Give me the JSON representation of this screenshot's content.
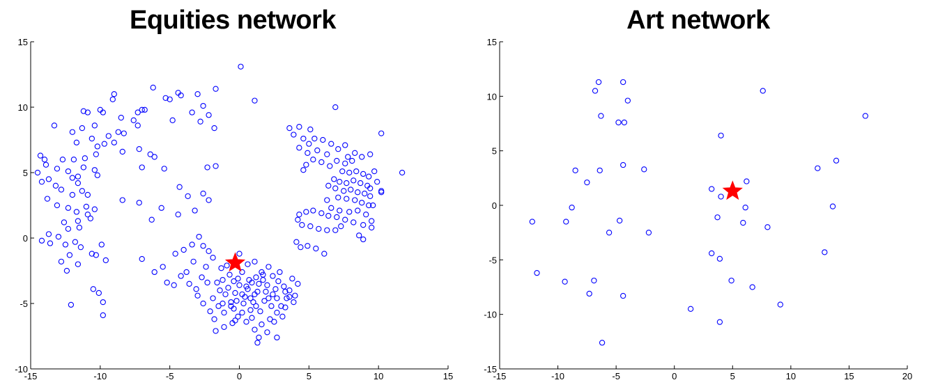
{
  "chart_data": [
    {
      "type": "scatter",
      "title": "Equities network",
      "xlim": [
        -15,
        15
      ],
      "ylim": [
        -10,
        15
      ],
      "xticks": [
        "-15",
        "-10",
        "-5",
        "0",
        "5",
        "10",
        "15"
      ],
      "yticks": [
        "-10",
        "-5",
        "0",
        "5",
        "10",
        "15"
      ],
      "grid": false,
      "marker_color": "#0000ff",
      "highlight_color": "#ff0000",
      "highlight": {
        "x": -0.3,
        "y": -1.9
      },
      "points": [
        [
          0.1,
          13.1
        ],
        [
          -6.2,
          11.5
        ],
        [
          -1.7,
          11.4
        ],
        [
          -3.0,
          11.0
        ],
        [
          -4.4,
          11.1
        ],
        [
          -4.2,
          10.9
        ],
        [
          -9.0,
          11.0
        ],
        [
          -9.1,
          10.6
        ],
        [
          1.1,
          10.5
        ],
        [
          -7.0,
          9.8
        ],
        [
          -7.3,
          9.6
        ],
        [
          -6.8,
          9.8
        ],
        [
          -5.3,
          10.7
        ],
        [
          -5.0,
          10.6
        ],
        [
          -2.6,
          10.1
        ],
        [
          -3.4,
          9.6
        ],
        [
          -10.9,
          9.6
        ],
        [
          -11.2,
          9.7
        ],
        [
          -10.0,
          9.8
        ],
        [
          -8.5,
          9.2
        ],
        [
          -9.8,
          9.6
        ],
        [
          -7.6,
          9.0
        ],
        [
          -4.8,
          9.0
        ],
        [
          -2.2,
          9.4
        ],
        [
          -2.8,
          8.9
        ],
        [
          -1.8,
          8.4
        ],
        [
          -7.3,
          8.6
        ],
        [
          -8.3,
          8.0
        ],
        [
          -8.7,
          8.1
        ],
        [
          -10.4,
          8.6
        ],
        [
          -11.3,
          8.4
        ],
        [
          -12.0,
          8.1
        ],
        [
          -13.3,
          8.6
        ],
        [
          -11.7,
          7.3
        ],
        [
          -10.6,
          7.6
        ],
        [
          -9.4,
          7.8
        ],
        [
          -9.7,
          7.2
        ],
        [
          -10.2,
          7.0
        ],
        [
          -9.0,
          7.3
        ],
        [
          -8.4,
          6.6
        ],
        [
          -7.2,
          6.8
        ],
        [
          -6.4,
          6.4
        ],
        [
          -6.1,
          6.2
        ],
        [
          -7.0,
          5.4
        ],
        [
          -10.3,
          6.4
        ],
        [
          -11.1,
          6.1
        ],
        [
          -11.9,
          6.0
        ],
        [
          -12.7,
          6.0
        ],
        [
          -14.0,
          6.0
        ],
        [
          -13.9,
          5.6
        ],
        [
          -14.3,
          6.3
        ],
        [
          -13.1,
          5.3
        ],
        [
          -12.3,
          5.1
        ],
        [
          -11.2,
          5.4
        ],
        [
          -10.4,
          5.2
        ],
        [
          -10.2,
          4.8
        ],
        [
          -11.6,
          4.7
        ],
        [
          -12.0,
          4.6
        ],
        [
          -13.7,
          4.5
        ],
        [
          -14.2,
          4.3
        ],
        [
          -14.5,
          5.0
        ],
        [
          -13.2,
          4.0
        ],
        [
          -11.6,
          4.2
        ],
        [
          -11.3,
          3.6
        ],
        [
          -10.9,
          3.3
        ],
        [
          -12.0,
          3.3
        ],
        [
          -12.8,
          3.7
        ],
        [
          -13.8,
          3.0
        ],
        [
          -13.1,
          2.5
        ],
        [
          -12.3,
          2.3
        ],
        [
          -11.0,
          2.4
        ],
        [
          -10.4,
          2.2
        ],
        [
          -10.9,
          1.8
        ],
        [
          -11.7,
          2.0
        ],
        [
          -12.6,
          1.2
        ],
        [
          -11.6,
          1.3
        ],
        [
          -10.7,
          1.5
        ],
        [
          -11.5,
          0.8
        ],
        [
          -12.3,
          0.7
        ],
        [
          -13.0,
          0.1
        ],
        [
          -13.7,
          0.3
        ],
        [
          -14.2,
          -0.2
        ],
        [
          -13.6,
          -0.4
        ],
        [
          -12.5,
          -0.5
        ],
        [
          -11.8,
          -0.3
        ],
        [
          -11.4,
          -0.7
        ],
        [
          -12.2,
          -1.3
        ],
        [
          -12.8,
          -1.8
        ],
        [
          -11.6,
          -2.0
        ],
        [
          -10.6,
          -1.2
        ],
        [
          -9.9,
          -0.5
        ],
        [
          -10.3,
          -1.3
        ],
        [
          -9.6,
          -1.7
        ],
        [
          -12.4,
          -2.5
        ],
        [
          -10.5,
          -3.9
        ],
        [
          -10.1,
          -4.2
        ],
        [
          -9.8,
          -4.9
        ],
        [
          -12.1,
          -5.1
        ],
        [
          -9.8,
          -5.9
        ],
        [
          -8.4,
          2.9
        ],
        [
          -7.2,
          2.7
        ],
        [
          -6.3,
          1.4
        ],
        [
          -5.6,
          2.3
        ],
        [
          -5.4,
          5.3
        ],
        [
          -4.3,
          3.9
        ],
        [
          -3.7,
          3.2
        ],
        [
          -2.6,
          3.4
        ],
        [
          -2.2,
          2.9
        ],
        [
          -3.2,
          2.1
        ],
        [
          -4.4,
          1.8
        ],
        [
          -2.3,
          5.4
        ],
        [
          -1.7,
          5.5
        ],
        [
          -7.0,
          -1.6
        ],
        [
          -6.1,
          -2.6
        ],
        [
          -5.5,
          -2.2
        ],
        [
          -5.2,
          -3.4
        ],
        [
          -4.6,
          -1.2
        ],
        [
          -4.0,
          -0.9
        ],
        [
          -3.4,
          -0.5
        ],
        [
          -2.9,
          0.1
        ],
        [
          -2.6,
          -0.6
        ],
        [
          -2.2,
          -1.0
        ],
        [
          -3.3,
          -1.8
        ],
        [
          -3.8,
          -2.6
        ],
        [
          -2.7,
          -3.0
        ],
        [
          -2.3,
          -3.4
        ],
        [
          -3.1,
          -3.9
        ],
        [
          -1.9,
          -4.6
        ],
        [
          -1.5,
          -5.2
        ],
        [
          -2.1,
          -5.6
        ],
        [
          -1.8,
          -6.2
        ],
        [
          -1.1,
          -5.7
        ],
        [
          -0.6,
          -5.2
        ],
        [
          -0.2,
          -4.8
        ],
        [
          0.2,
          -4.3
        ],
        [
          0.5,
          -3.7
        ],
        [
          0.9,
          -3.4
        ],
        [
          1.2,
          -3.0
        ],
        [
          1.6,
          -2.6
        ],
        [
          2.1,
          -2.2
        ],
        [
          2.4,
          -2.9
        ],
        [
          2.8,
          -3.3
        ],
        [
          3.2,
          -3.7
        ],
        [
          3.6,
          -4.0
        ],
        [
          4.0,
          -4.4
        ],
        [
          3.9,
          -4.9
        ],
        [
          3.3,
          -5.3
        ],
        [
          2.7,
          -5.7
        ],
        [
          2.2,
          -6.2
        ],
        [
          1.6,
          -6.6
        ],
        [
          1.1,
          -7.0
        ],
        [
          0.5,
          -6.4
        ],
        [
          -0.1,
          -6.0
        ],
        [
          -0.5,
          -6.5
        ],
        [
          -1.1,
          -6.8
        ],
        [
          -1.7,
          -7.1
        ],
        [
          1.4,
          -7.6
        ],
        [
          1.3,
          -8.0
        ],
        [
          2.0,
          -7.2
        ],
        [
          2.7,
          -7.6
        ],
        [
          0.0,
          -1.2
        ],
        [
          0.6,
          -2.0
        ],
        [
          1.1,
          -1.8
        ],
        [
          1.7,
          -2.8
        ],
        [
          2.4,
          -4.3
        ],
        [
          1.8,
          -4.8
        ],
        [
          1.2,
          -5.2
        ],
        [
          0.8,
          -4.6
        ],
        [
          0.3,
          -5.0
        ],
        [
          -0.3,
          -4.2
        ],
        [
          -0.8,
          -3.8
        ],
        [
          -1.2,
          -3.2
        ],
        [
          -0.7,
          -2.8
        ],
        [
          -0.1,
          -3.1
        ],
        [
          0.6,
          -3.9
        ],
        [
          1.3,
          -4.1
        ],
        [
          2.0,
          -3.6
        ],
        [
          2.7,
          -4.6
        ],
        [
          3.0,
          -5.2
        ],
        [
          3.6,
          -4.5
        ],
        [
          -1.3,
          -2.3
        ],
        [
          -1.9,
          -1.5
        ],
        [
          -2.4,
          -2.2
        ],
        [
          -1.0,
          -4.3
        ],
        [
          -0.4,
          -5.4
        ],
        [
          0.2,
          -5.7
        ],
        [
          0.8,
          -5.5
        ],
        [
          1.5,
          -5.6
        ],
        [
          2.3,
          -5.2
        ],
        [
          1.9,
          -4.1
        ],
        [
          2.6,
          -3.9
        ],
        [
          3.3,
          -4.1
        ],
        [
          1.0,
          -4.9
        ],
        [
          0.4,
          -4.5
        ],
        [
          -0.6,
          -4.9
        ],
        [
          -1.4,
          -4.0
        ],
        [
          -1.6,
          -3.4
        ],
        [
          -0.9,
          -2.1
        ],
        [
          0.2,
          -2.6
        ],
        [
          1.4,
          -3.5
        ],
        [
          -3.0,
          -4.4
        ],
        [
          -2.6,
          -5.0
        ],
        [
          -3.6,
          -3.5
        ],
        [
          -4.2,
          -2.9
        ],
        [
          -4.7,
          -3.6
        ],
        [
          2.9,
          -2.6
        ],
        [
          3.8,
          -3.1
        ],
        [
          4.2,
          -3.5
        ],
        [
          1.7,
          -3.2
        ],
        [
          0.0,
          -3.6
        ],
        [
          -0.4,
          -3.3
        ],
        [
          -1.2,
          -5.0
        ],
        [
          -0.3,
          -6.3
        ],
        [
          0.9,
          -6.1
        ],
        [
          2.5,
          -6.4
        ],
        [
          3.1,
          -6.0
        ],
        [
          3.4,
          -4.6
        ],
        [
          2.1,
          -4.6
        ],
        [
          1.1,
          -4.3
        ],
        [
          0.7,
          -3.2
        ],
        [
          6.9,
          10.0
        ],
        [
          3.6,
          8.4
        ],
        [
          4.3,
          8.5
        ],
        [
          5.1,
          8.3
        ],
        [
          3.9,
          7.9
        ],
        [
          4.6,
          7.6
        ],
        [
          5.4,
          7.6
        ],
        [
          6.0,
          7.5
        ],
        [
          4.3,
          6.9
        ],
        [
          4.9,
          6.5
        ],
        [
          5.6,
          6.7
        ],
        [
          6.3,
          6.4
        ],
        [
          5.3,
          6.0
        ],
        [
          4.8,
          5.6
        ],
        [
          4.6,
          5.2
        ],
        [
          5.9,
          5.8
        ],
        [
          6.5,
          5.5
        ],
        [
          7.0,
          5.9
        ],
        [
          7.6,
          5.7
        ],
        [
          8.1,
          5.9
        ],
        [
          8.8,
          6.2
        ],
        [
          9.4,
          6.4
        ],
        [
          7.4,
          5.1
        ],
        [
          7.9,
          5.0
        ],
        [
          8.4,
          5.1
        ],
        [
          8.9,
          4.9
        ],
        [
          9.3,
          4.7
        ],
        [
          6.8,
          4.5
        ],
        [
          7.2,
          4.3
        ],
        [
          7.7,
          4.2
        ],
        [
          8.2,
          4.4
        ],
        [
          8.7,
          4.2
        ],
        [
          9.2,
          4.0
        ],
        [
          6.4,
          4.0
        ],
        [
          6.9,
          3.8
        ],
        [
          7.5,
          3.6
        ],
        [
          8.0,
          3.7
        ],
        [
          8.5,
          3.5
        ],
        [
          9.0,
          3.4
        ],
        [
          9.4,
          3.2
        ],
        [
          7.1,
          3.1
        ],
        [
          7.7,
          3.0
        ],
        [
          8.3,
          2.9
        ],
        [
          8.8,
          2.7
        ],
        [
          9.3,
          2.5
        ],
        [
          6.3,
          2.9
        ],
        [
          6.6,
          2.3
        ],
        [
          7.2,
          2.1
        ],
        [
          7.9,
          2.0
        ],
        [
          8.5,
          2.1
        ],
        [
          9.1,
          1.8
        ],
        [
          9.5,
          1.3
        ],
        [
          8.9,
          1.0
        ],
        [
          8.2,
          1.2
        ],
        [
          7.6,
          1.4
        ],
        [
          7.0,
          1.6
        ],
        [
          6.4,
          1.7
        ],
        [
          5.9,
          1.9
        ],
        [
          5.3,
          2.1
        ],
        [
          4.8,
          2.0
        ],
        [
          4.3,
          1.8
        ],
        [
          4.2,
          1.4
        ],
        [
          4.5,
          1.0
        ],
        [
          5.1,
          0.9
        ],
        [
          5.7,
          0.7
        ],
        [
          6.3,
          0.6
        ],
        [
          6.9,
          0.6
        ],
        [
          7.3,
          0.9
        ],
        [
          8.6,
          0.2
        ],
        [
          9.5,
          0.8
        ],
        [
          8.9,
          -0.1
        ],
        [
          4.9,
          -0.6
        ],
        [
          4.4,
          -0.7
        ],
        [
          5.5,
          -0.8
        ],
        [
          6.1,
          -1.2
        ],
        [
          4.1,
          -0.3
        ],
        [
          9.4,
          3.8
        ],
        [
          9.9,
          4.3
        ],
        [
          9.7,
          5.1
        ],
        [
          10.2,
          3.6
        ],
        [
          11.7,
          5.0
        ],
        [
          10.2,
          3.5
        ],
        [
          10.2,
          8.0
        ],
        [
          9.6,
          2.5
        ],
        [
          7.6,
          7.1
        ],
        [
          8.3,
          6.5
        ],
        [
          7.8,
          6.2
        ],
        [
          6.6,
          7.2
        ],
        [
          7.1,
          6.8
        ],
        [
          5.0,
          7.2
        ]
      ]
    },
    {
      "type": "scatter",
      "title": "Art network",
      "xlim": [
        -15,
        20
      ],
      "ylim": [
        -15,
        15
      ],
      "xticks": [
        "-15",
        "-10",
        "-5",
        "0",
        "5",
        "10",
        "15",
        "20"
      ],
      "yticks": [
        "-15",
        "-10",
        "-5",
        "0",
        "5",
        "10",
        "15"
      ],
      "grid": false,
      "marker_color": "#0000ff",
      "highlight_color": "#ff0000",
      "highlight": {
        "x": 5.0,
        "y": 1.3
      },
      "points": [
        [
          -6.5,
          11.3
        ],
        [
          -4.4,
          11.3
        ],
        [
          -6.8,
          10.5
        ],
        [
          -4.0,
          9.6
        ],
        [
          7.6,
          10.5
        ],
        [
          -6.3,
          8.2
        ],
        [
          -4.8,
          7.6
        ],
        [
          -4.3,
          7.6
        ],
        [
          16.4,
          8.2
        ],
        [
          4.0,
          6.4
        ],
        [
          -8.5,
          3.2
        ],
        [
          -6.4,
          3.2
        ],
        [
          -4.4,
          3.7
        ],
        [
          -2.6,
          3.3
        ],
        [
          12.3,
          3.4
        ],
        [
          13.9,
          4.1
        ],
        [
          -7.5,
          2.1
        ],
        [
          3.2,
          1.5
        ],
        [
          4.0,
          0.8
        ],
        [
          6.2,
          2.2
        ],
        [
          -8.8,
          -0.2
        ],
        [
          6.1,
          -0.2
        ],
        [
          13.6,
          -0.1
        ],
        [
          -12.2,
          -1.5
        ],
        [
          -9.3,
          -1.5
        ],
        [
          -4.7,
          -1.4
        ],
        [
          3.7,
          -1.1
        ],
        [
          5.9,
          -1.6
        ],
        [
          8.0,
          -2.0
        ],
        [
          -5.6,
          -2.5
        ],
        [
          -2.2,
          -2.5
        ],
        [
          3.2,
          -4.4
        ],
        [
          3.9,
          -4.9
        ],
        [
          12.9,
          -4.3
        ],
        [
          -11.8,
          -6.2
        ],
        [
          -9.4,
          -7.0
        ],
        [
          -6.9,
          -6.9
        ],
        [
          4.9,
          -6.9
        ],
        [
          6.7,
          -7.5
        ],
        [
          -7.3,
          -8.1
        ],
        [
          -4.4,
          -8.3
        ],
        [
          9.1,
          -9.1
        ],
        [
          1.4,
          -9.5
        ],
        [
          3.9,
          -10.7
        ],
        [
          -6.2,
          -12.6
        ]
      ]
    }
  ]
}
